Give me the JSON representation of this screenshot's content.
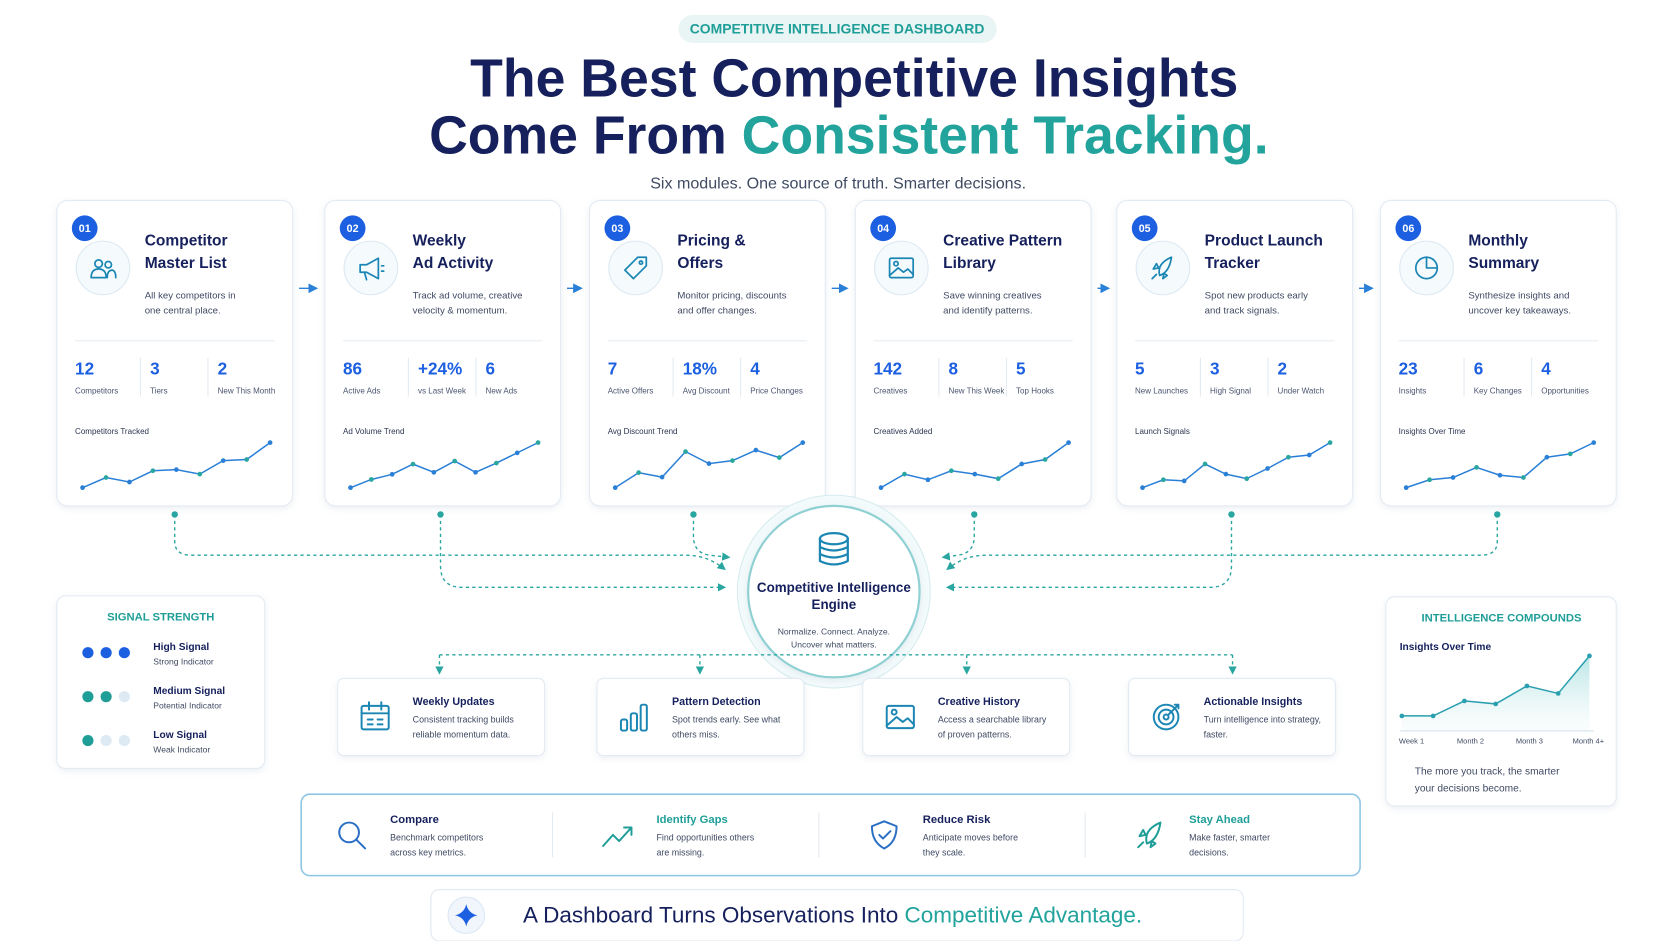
{
  "badge": "COMPETITIVE INTELLIGENCE DASHBOARD",
  "headline": {
    "line1": "The Best Competitive Insights",
    "line2_a": "Come From ",
    "line2_b": "Consistent Tracking."
  },
  "subtitle": "Six modules. One source of truth. Smarter decisions.",
  "modules": [
    {
      "number": "01",
      "title": [
        "Competitor",
        "Master List"
      ],
      "description": [
        "All key competitors in",
        "one central place."
      ],
      "stats": [
        {
          "value": "12",
          "label": "Competitors"
        },
        {
          "value": "3",
          "label": "Tiers"
        },
        {
          "value": "2",
          "label": "New This Month"
        }
      ],
      "trend_label": "Competitors Tracked",
      "trend": [
        0,
        9,
        5,
        15,
        16,
        12,
        24,
        25,
        40
      ]
    },
    {
      "number": "02",
      "title": [
        "Weekly",
        "Ad Activity"
      ],
      "description": [
        "Track ad volume, creative",
        "velocity & momentum."
      ],
      "stats": [
        {
          "value": "86",
          "label": "Active Ads"
        },
        {
          "value": "+24%",
          "label": "vs Last Week"
        },
        {
          "value": "6",
          "label": "New Ads"
        }
      ],
      "trend_label": "Ad Volume Trend",
      "trend": [
        0,
        8,
        13,
        23,
        15,
        26,
        15,
        24,
        34,
        44
      ]
    },
    {
      "number": "03",
      "title": [
        "Pricing &",
        "Offers"
      ],
      "description": [
        "Monitor pricing, discounts",
        "and offer changes."
      ],
      "stats": [
        {
          "value": "7",
          "label": "Active Offers"
        },
        {
          "value": "18%",
          "label": "Avg Discount"
        },
        {
          "value": "4",
          "label": "Price Changes"
        }
      ],
      "trend_label": "Avg Discount Trend",
      "trend": [
        0,
        10,
        7,
        24,
        16,
        18,
        25,
        20,
        30
      ]
    },
    {
      "number": "04",
      "title": [
        "Creative Pattern",
        "Library"
      ],
      "description": [
        "Save winning creatives",
        "and identify patterns."
      ],
      "stats": [
        {
          "value": "142",
          "label": "Creatives"
        },
        {
          "value": "8",
          "label": "New This Week"
        },
        {
          "value": "5",
          "label": "Top Hooks"
        }
      ],
      "trend_label": "Creatives Added",
      "trend": [
        0,
        12,
        7,
        15,
        12,
        8,
        21,
        25,
        40
      ]
    },
    {
      "number": "05",
      "title": [
        "Product Launch",
        "Tracker"
      ],
      "description": [
        "Spot new products early",
        "and track signals."
      ],
      "stats": [
        {
          "value": "5",
          "label": "New Launches"
        },
        {
          "value": "3",
          "label": "High Signal"
        },
        {
          "value": "2",
          "label": "Under Watch"
        }
      ],
      "trend_label": "Launch Signals",
      "trend": [
        0,
        7,
        6,
        21,
        12,
        8,
        17,
        27,
        29,
        40
      ]
    },
    {
      "number": "06",
      "title": [
        "Monthly",
        "Summary"
      ],
      "description": [
        "Synthesize insights and",
        "uncover key takeaways."
      ],
      "stats": [
        {
          "value": "23",
          "label": "Insights"
        },
        {
          "value": "6",
          "label": "Key Changes"
        },
        {
          "value": "4",
          "label": "Opportunities"
        }
      ],
      "trend_label": "Insights Over Time",
      "trend": [
        0,
        7,
        9,
        18,
        11,
        9,
        27,
        30,
        40
      ]
    }
  ],
  "engine": {
    "title": [
      "Competitive Intelligence",
      "Engine"
    ],
    "description": [
      "Normalize. Connect. Analyze.",
      "Uncover what matters."
    ]
  },
  "signal_strength": {
    "title": "SIGNAL STRENGTH",
    "levels": [
      {
        "name": "High Signal",
        "note": "Strong Indicator",
        "dots_filled": 3
      },
      {
        "name": "Medium Signal",
        "note": "Potential Indicator",
        "dots_filled": 2
      },
      {
        "name": "Low Signal",
        "note": "Weak Indicator",
        "dots_filled": 1
      }
    ]
  },
  "outputs": [
    {
      "title": "Weekly Updates",
      "description": [
        "Consistent tracking builds",
        "reliable momentum data."
      ]
    },
    {
      "title": "Pattern Detection",
      "description": [
        "Spot trends early. See what",
        "others miss."
      ]
    },
    {
      "title": "Creative History",
      "description": [
        "Access a searchable library",
        "of proven patterns."
      ]
    },
    {
      "title": "Actionable Insights",
      "description": [
        "Turn intelligence into strategy,",
        "faster."
      ]
    }
  ],
  "compounds": {
    "title": "INTELLIGENCE COMPOUNDS",
    "chart_title": "Insights Over Time",
    "x_labels": [
      "Week 1",
      "Month 2",
      "Month 3",
      "Month 4+"
    ],
    "values": [
      5,
      5,
      15,
      13,
      25,
      20,
      45
    ],
    "caption": [
      "The more you track, the smarter",
      "your decisions become."
    ]
  },
  "benefits": [
    {
      "title": "Compare",
      "description": [
        "Benchmark competitors",
        "across key metrics."
      ]
    },
    {
      "title": "Identify Gaps",
      "description": [
        "Find opportunities others",
        "are missing."
      ]
    },
    {
      "title": "Reduce Risk",
      "description": [
        "Anticipate moves before",
        "they scale."
      ]
    },
    {
      "title": "Stay Ahead",
      "description": [
        "Make faster, smarter",
        "decisions."
      ]
    }
  ],
  "footer": {
    "text_a": "A Dashboard Turns Observations Into ",
    "text_b": "Competitive Advantage."
  }
}
